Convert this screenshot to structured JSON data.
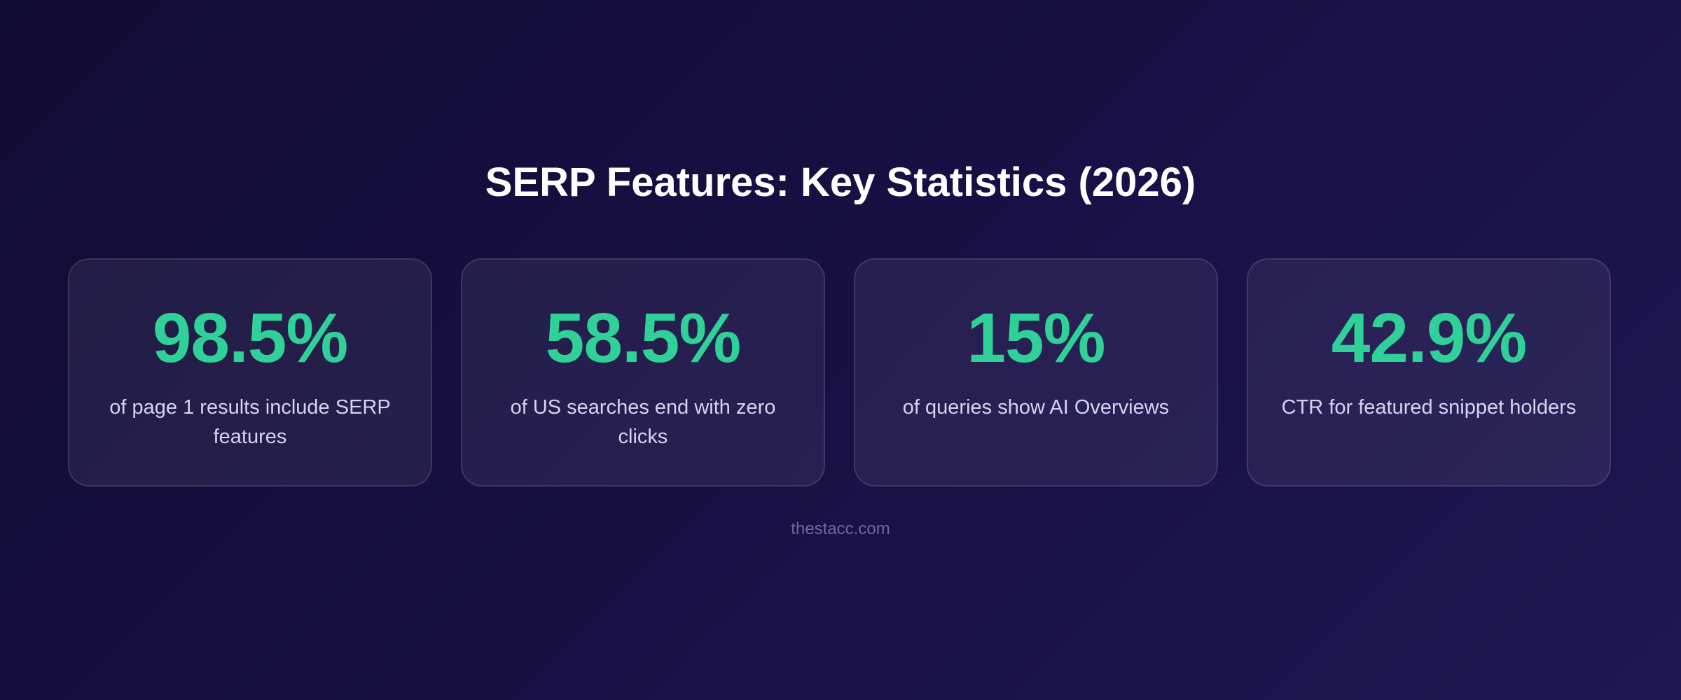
{
  "title": "SERP Features: Key Statistics (2026)",
  "cards": [
    {
      "value": "98.5%",
      "label": "of page 1 results include SERP features"
    },
    {
      "value": "58.5%",
      "label": "of US searches end with zero clicks"
    },
    {
      "value": "15%",
      "label": "of queries show AI Overviews"
    },
    {
      "value": "42.9%",
      "label": "CTR for featured snippet holders"
    }
  ],
  "footer": "thestacc.com"
}
